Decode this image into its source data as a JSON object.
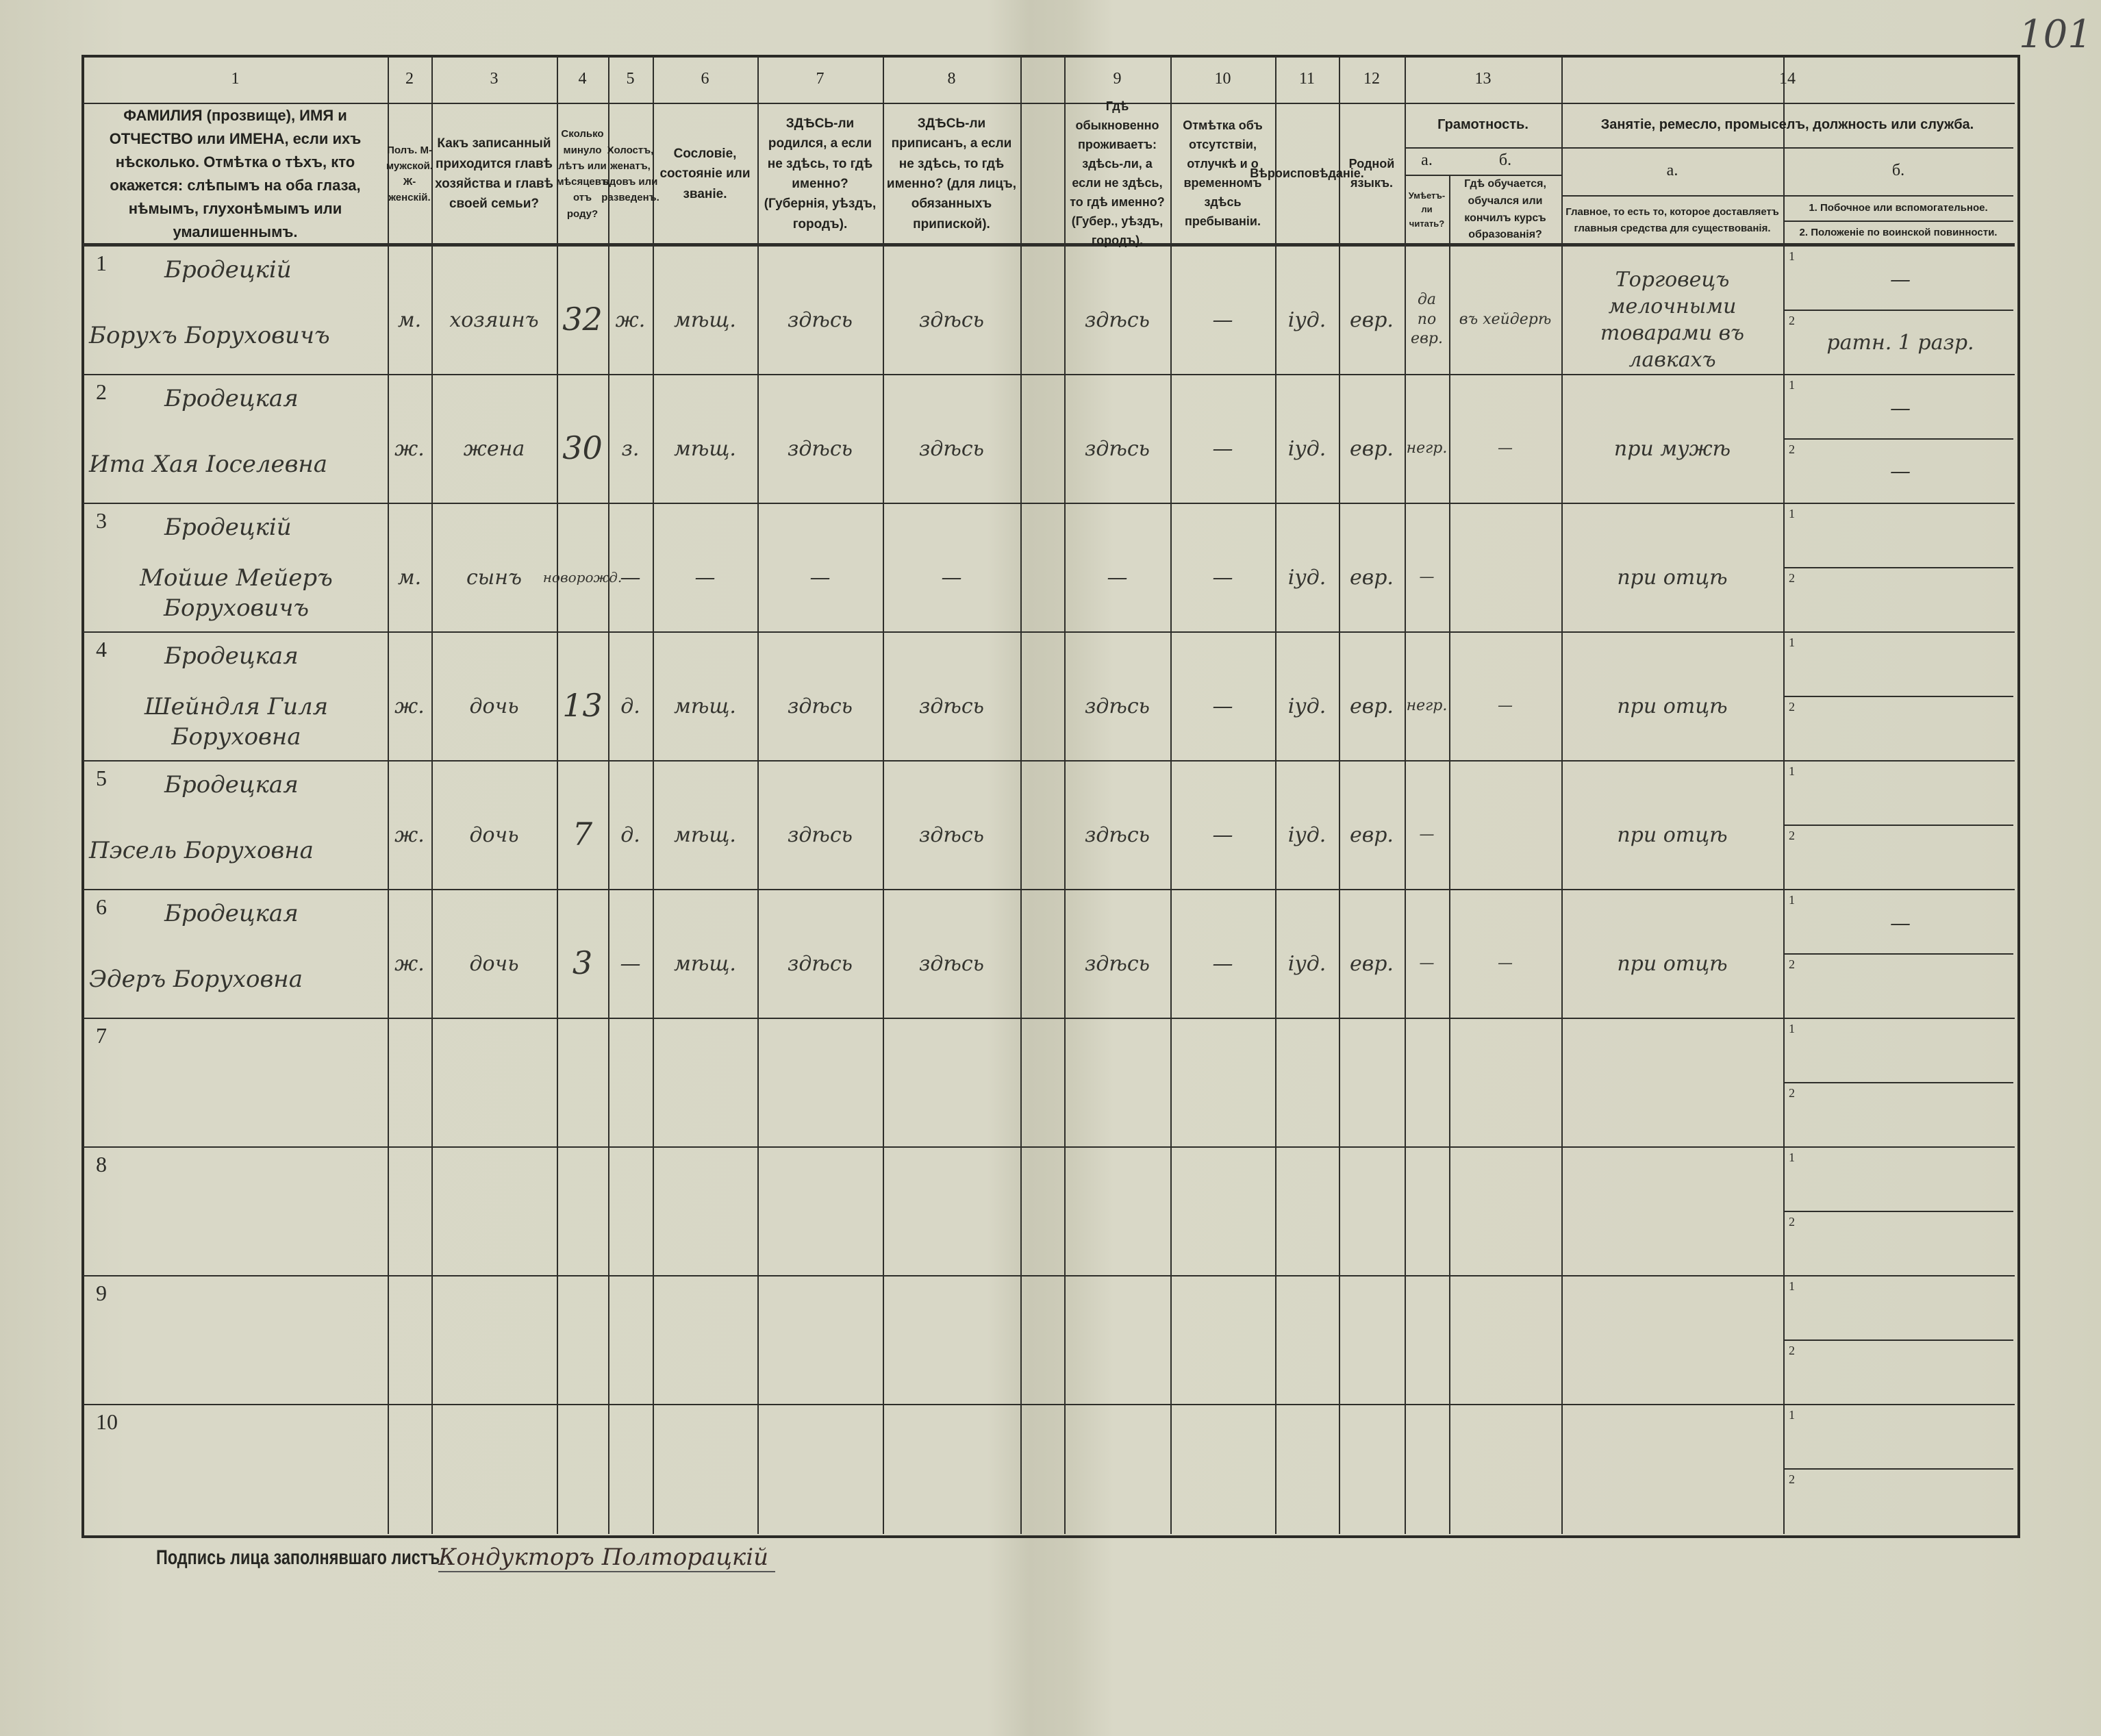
{
  "page_number": "101",
  "header": {
    "numbers": [
      "1",
      "2",
      "3",
      "4",
      "5",
      "6",
      "7",
      "8",
      "9",
      "10",
      "11",
      "12",
      "13",
      "14"
    ],
    "c1": "ФАМИЛИЯ (прозвище), ИМЯ и ОТЧЕСТВО или ИМЕНА, если ихъ нѣсколько. Отмѣтка о тѣхъ, кто окажется: слѣпымъ на оба глаза, нѣмымъ, глухонѣмымъ или умалишеннымъ.",
    "c2": "Полъ. М-мужской. Ж-женскій.",
    "c3": "Какъ записанный приходится главѣ хозяйства и главѣ своей семьи?",
    "c4": "Сколько минуло лѣтъ или мѣсяцевъ отъ роду?",
    "c5": "Холостъ, женатъ, вдовъ или разведенъ.",
    "c6": "Сословіе, состояніе или званіе.",
    "c7": "ЗДѢСЬ-ли родился, а если не здѣсь, то гдѣ именно? (Губернія, уѣздъ, городъ).",
    "c8": "ЗДѢСЬ-ли приписанъ, а если не здѣсь, то гдѣ именно? (для лицъ, обязанныхъ припиской).",
    "c9": "Гдѣ обыкновенно проживаетъ: здѣсь-ли, а если не здѣсь, то гдѣ именно? (Губер., уѣздъ, городъ).",
    "c10": "Отмѣтка объ отсутствіи, отлучкѣ и о временномъ здѣсь пребываніи.",
    "c11": "Вѣроисповѣданіе.",
    "c12": "Родной языкъ.",
    "c13_title": "Грамотность.",
    "c13a_label": "а.",
    "c13b_label": "б.",
    "c13a": "Умѣетъ-ли читать?",
    "c13b": "Гдѣ обучается, обучался или кончилъ курсъ образованія?",
    "c14_title": "Занятіе, ремесло, промыселъ, должность или служба.",
    "c14a_label": "а.",
    "c14b_label": "б.",
    "c14a": "Главное, то есть то, которое доставляетъ главныя средства для существованія.",
    "c14b1": "1. Побочное или вспомогательное.",
    "c14b2": "2. Положеніе по воинской повинности."
  },
  "sub_labels": [
    "1",
    "2"
  ],
  "rows": [
    {
      "n": "1",
      "surname": "Бродецкій",
      "name": "Борухъ Боруховичъ",
      "sex": "м.",
      "relation": "хозяинъ",
      "age": "32",
      "marital": "ж.",
      "estate": "мѣщ.",
      "born": "здѣсь",
      "registered": "здѣсь",
      "resides": "здѣсь",
      "absence": "—",
      "religion": "іуд.",
      "language": "евр.",
      "reads": "да по евр.",
      "school": "въ хейдерѣ",
      "occupation": "Торговецъ мелочными товарами въ лавкахъ",
      "side": "—",
      "military": "ратн. 1 разр."
    },
    {
      "n": "2",
      "surname": "Бродецкая",
      "name": "Ита Хая Іоселевна",
      "sex": "ж.",
      "relation": "жена",
      "age": "30",
      "marital": "з.",
      "estate": "мѣщ.",
      "born": "здѣсь",
      "registered": "здѣсь",
      "resides": "здѣсь",
      "absence": "—",
      "religion": "іуд.",
      "language": "евр.",
      "reads": "негр.",
      "school": "—",
      "occupation": "при мужѣ",
      "side": "—",
      "military": "—"
    },
    {
      "n": "3",
      "surname": "Бродецкій",
      "name": "Мойше Мейеръ Боруховичъ",
      "sex": "м.",
      "relation": "сынъ",
      "age": "новорожд.",
      "marital": "—",
      "estate": "—",
      "born": "—",
      "registered": "—",
      "resides": "—",
      "absence": "—",
      "religion": "іуд.",
      "language": "евр.",
      "reads": "—",
      "school": "",
      "occupation": "при отцѣ",
      "side": "",
      "military": ""
    },
    {
      "n": "4",
      "surname": "Бродецкая",
      "name": "Шейндля Гиля Боруховна",
      "sex": "ж.",
      "relation": "дочь",
      "age": "13",
      "marital": "д.",
      "estate": "мѣщ.",
      "born": "здѣсь",
      "registered": "здѣсь",
      "resides": "здѣсь",
      "absence": "—",
      "religion": "іуд.",
      "language": "евр.",
      "reads": "негр.",
      "school": "—",
      "occupation": "при отцѣ",
      "side": "",
      "military": ""
    },
    {
      "n": "5",
      "surname": "Бродецкая",
      "name": "Пэсель Боруховна",
      "sex": "ж.",
      "relation": "дочь",
      "age": "7",
      "marital": "д.",
      "estate": "мѣщ.",
      "born": "здѣсь",
      "registered": "здѣсь",
      "resides": "здѣсь",
      "absence": "—",
      "religion": "іуд.",
      "language": "евр.",
      "reads": "—",
      "school": "",
      "occupation": "при отцѣ",
      "side": "",
      "military": ""
    },
    {
      "n": "6",
      "surname": "Бродецкая",
      "name": "Эдеръ Боруховна",
      "sex": "ж.",
      "relation": "дочь",
      "age": "3",
      "marital": "—",
      "estate": "мѣщ.",
      "born": "здѣсь",
      "registered": "здѣсь",
      "resides": "здѣсь",
      "absence": "—",
      "religion": "іуд.",
      "language": "евр.",
      "reads": "—",
      "school": "—",
      "occupation": "при отцѣ",
      "side": "—",
      "military": ""
    },
    {
      "n": "7"
    },
    {
      "n": "8"
    },
    {
      "n": "9"
    },
    {
      "n": "10"
    }
  ],
  "footer": {
    "signature_label": "Подпись лица заполнявшаго листъ",
    "signature": "Кондукторъ Полторацкій"
  }
}
